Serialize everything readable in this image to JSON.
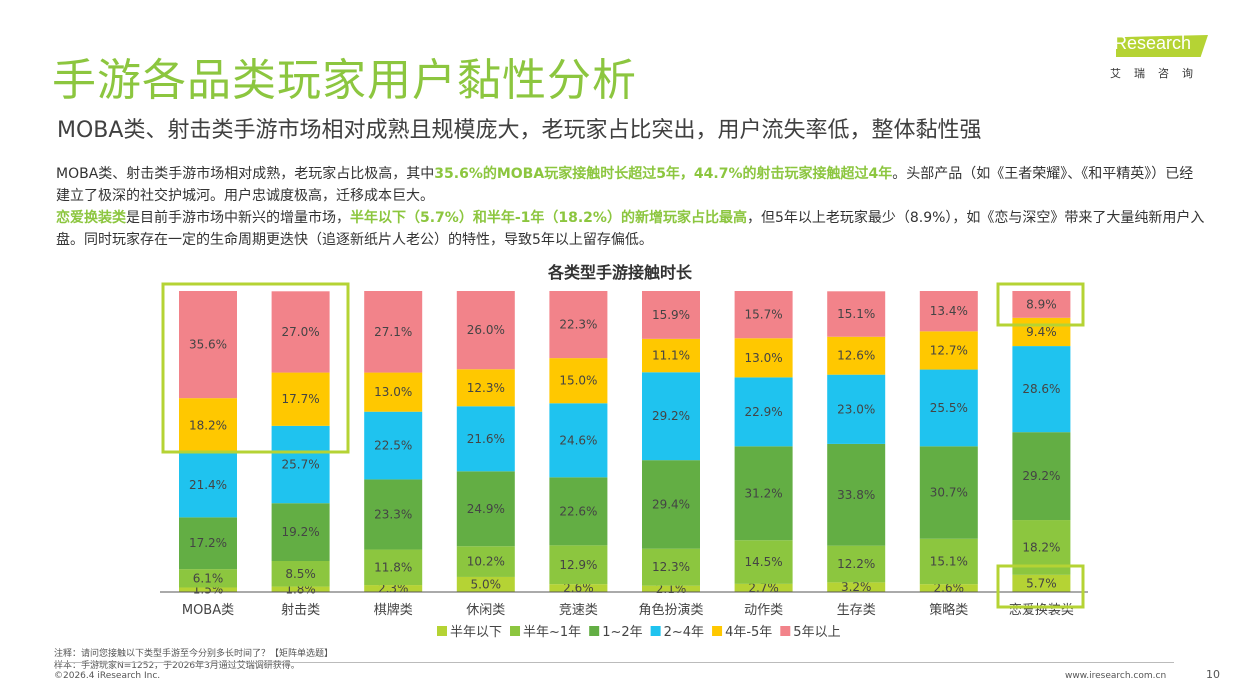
{
  "header": {
    "title": "手游各品类玩家用户黏性分析",
    "subtitle": "MOBA类、射击类手游市场相对成熟且规模庞大，老玩家占比突出，用户流失率低，整体黏性强",
    "logo_text": "iResearch",
    "logo_cn": "艾瑞咨询"
  },
  "body": {
    "p1_a": "MOBA类、射击类手游市场相对成熟，老玩家占比极高，其中",
    "p1_hl": "35.6%的MOBA玩家接触时长超过5年，44.7%的射击玩家接触超过4年",
    "p1_b": "。头部产品（如《王者荣耀》、《和平精英》）已经建立了极深的社交护城河。用户忠诚度极高，迁移成本巨大。",
    "p2_hl1": "恋爱换装类",
    "p2_a": "是目前手游市场中新兴的增量市场，",
    "p2_hl2": "半年以下（5.7%）和半年-1年（18.2%）的新增玩家占比最高",
    "p2_b": "，但5年以上老玩家最少（8.9%），如《恋与深空》带来了大量纯新用户入盘。同时玩家存在一定的生命周期更迭快（追逐新纸片人老公）的特性，导致5年以上留存偏低。"
  },
  "chart_data": {
    "type": "bar",
    "stacked": true,
    "percent": true,
    "title": "各类型手游接触时长",
    "categories": [
      "MOBA类",
      "射击类",
      "棋牌类",
      "休闲类",
      "竞速类",
      "角色扮演类",
      "动作类",
      "生存类",
      "策略类",
      "恋爱换装类"
    ],
    "series": [
      {
        "name": "半年以下",
        "color": "#b5d334",
        "values": [
          1.5,
          1.8,
          2.3,
          5.0,
          2.6,
          2.1,
          2.7,
          3.2,
          2.6,
          5.7
        ]
      },
      {
        "name": "半年~1年",
        "color": "#8cc63f",
        "values": [
          6.1,
          8.5,
          11.8,
          10.2,
          12.9,
          12.3,
          14.5,
          12.2,
          15.1,
          18.2
        ]
      },
      {
        "name": "1~2年",
        "color": "#63ae44",
        "values": [
          17.2,
          19.2,
          23.3,
          24.9,
          22.6,
          29.4,
          31.2,
          33.8,
          30.7,
          29.2
        ]
      },
      {
        "name": "2~4年",
        "color": "#1fc3ef",
        "values": [
          21.4,
          25.7,
          22.5,
          21.6,
          24.6,
          29.2,
          22.9,
          23.0,
          25.5,
          28.6
        ]
      },
      {
        "name": "4年-5年",
        "color": "#ffc800",
        "values": [
          18.2,
          17.7,
          13.0,
          12.3,
          15.0,
          11.1,
          13.0,
          12.6,
          12.7,
          9.4
        ]
      },
      {
        "name": "5年以上",
        "color": "#f2838a",
        "values": [
          35.6,
          27.0,
          27.1,
          26.0,
          22.3,
          15.9,
          15.7,
          15.1,
          13.4,
          8.9
        ]
      }
    ],
    "ylim": [
      0,
      100
    ],
    "legend": "bottom",
    "grid": false,
    "highlight_color": "#b5d334"
  },
  "footer": {
    "note": "注释：请问您接触以下类型手游至今分别多长时间了？【矩阵单选题】",
    "sample": "样本：手游玩家N=1252，于2026年3月通过艾瑞调研获得。",
    "copyright": "©2026.4 iResearch Inc.",
    "website": "www.iresearch.com.cn",
    "page": "10"
  }
}
